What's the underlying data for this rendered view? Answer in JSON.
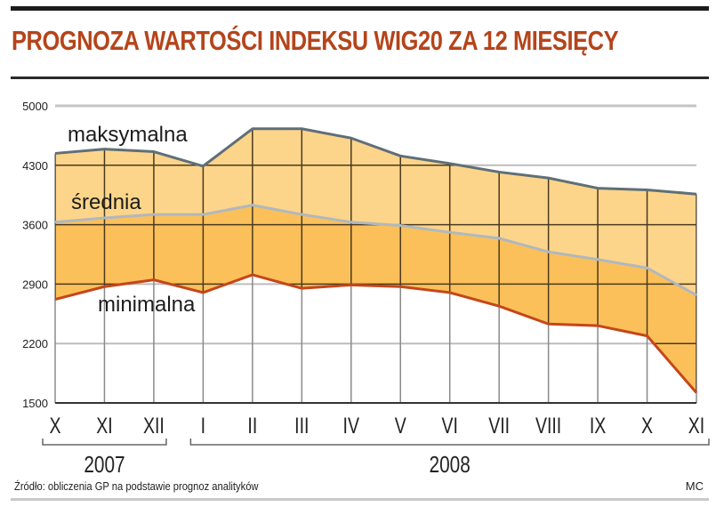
{
  "title": "PROGNOZA WARTOŚCI INDEKSU WIG20 ZA 12 MIESIĘCY",
  "source": "Źródło: obliczenia GP na podstawie prognoz analityków",
  "author": "MC",
  "colors": {
    "title": "#b5441a",
    "upper_band": "#fdd58a",
    "lower_band": "#fbc05a",
    "max_line": "#5f6f78",
    "avg_line": "#b0b8be",
    "min_line": "#c5461a"
  },
  "chart_data": {
    "type": "area",
    "title": "PROGNOZA WARTOŚCI INDEKSU WIG20 ZA 12 MIESIĘCY",
    "xlabel": "",
    "ylabel": "",
    "categories": [
      "X",
      "XI",
      "XII",
      "I",
      "II",
      "III",
      "IV",
      "V",
      "VI",
      "VII",
      "VIII",
      "IX",
      "X",
      "XI"
    ],
    "year_groups": [
      {
        "label": "2007",
        "from": 0,
        "to": 2
      },
      {
        "label": "2008",
        "from": 3,
        "to": 13
      }
    ],
    "yticks": [
      5000,
      4300,
      3600,
      2900,
      2200,
      1500
    ],
    "ylim": [
      1500,
      5000
    ],
    "grid": true,
    "legend": "inline labels",
    "series": [
      {
        "name": "maksymalna",
        "values": [
          4440,
          4490,
          4460,
          4290,
          4730,
          4730,
          4620,
          4410,
          4320,
          4220,
          4150,
          4030,
          4010,
          3960
        ]
      },
      {
        "name": "średnia",
        "values": [
          3630,
          3680,
          3720,
          3720,
          3830,
          3720,
          3630,
          3590,
          3510,
          3440,
          3280,
          3190,
          3090,
          2770
        ]
      },
      {
        "name": "minimalna",
        "values": [
          2720,
          2870,
          2950,
          2800,
          3010,
          2850,
          2890,
          2870,
          2800,
          2640,
          2430,
          2410,
          2290,
          1620
        ]
      }
    ]
  }
}
